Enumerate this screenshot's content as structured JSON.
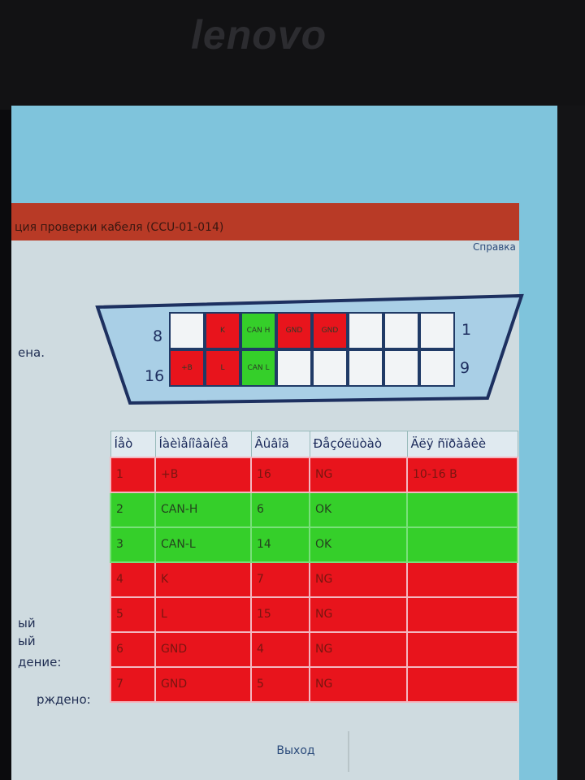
{
  "logo": "lenovo",
  "window": {
    "title": "ция проверки кабеля (CCU-01-014)",
    "help_link": "Справка",
    "exit_button": "Выход"
  },
  "left_labels": [
    "ена.",
    "ый",
    "ый",
    "дение:",
    "рждено:"
  ],
  "connector": {
    "pin_numbers": {
      "top_left": "8",
      "top_right": "1",
      "bottom_left": "16",
      "bottom_right": "9"
    },
    "top_row": [
      {
        "label": "",
        "status": "none"
      },
      {
        "label": "K",
        "status": "ng"
      },
      {
        "label": "CAN H",
        "status": "ok"
      },
      {
        "label": "GND",
        "status": "ng"
      },
      {
        "label": "GND",
        "status": "ng"
      },
      {
        "label": "",
        "status": "none"
      },
      {
        "label": "",
        "status": "none"
      },
      {
        "label": "",
        "status": "none"
      }
    ],
    "bottom_row": [
      {
        "label": "+B",
        "status": "ng"
      },
      {
        "label": "L",
        "status": "ng"
      },
      {
        "label": "CAN L",
        "status": "ok"
      },
      {
        "label": "",
        "status": "none"
      },
      {
        "label": "",
        "status": "none"
      },
      {
        "label": "",
        "status": "none"
      },
      {
        "label": "",
        "status": "none"
      },
      {
        "label": "",
        "status": "none"
      }
    ]
  },
  "colors": {
    "ok": "#35cf2a",
    "ng": "#e8141c",
    "none": "#f2f4f6"
  },
  "table": {
    "headers": [
      "Íåò",
      "Íàèìåíîâàíèå",
      "Âûâîä",
      "Ðåçóëüòàò",
      "Äëÿ ñïðàâêè"
    ],
    "rows": [
      {
        "status": "ng",
        "cells": [
          "1",
          "+B",
          "16",
          "NG",
          "10-16 В"
        ]
      },
      {
        "status": "ok",
        "cells": [
          "2",
          "CAN-H",
          "6",
          "OK",
          ""
        ]
      },
      {
        "status": "ok",
        "cells": [
          "3",
          "CAN-L",
          "14",
          "OK",
          ""
        ]
      },
      {
        "status": "ng",
        "cells": [
          "4",
          "K",
          "7",
          "NG",
          ""
        ]
      },
      {
        "status": "ng",
        "cells": [
          "5",
          "L",
          "15",
          "NG",
          ""
        ]
      },
      {
        "status": "ng",
        "cells": [
          "6",
          "GND",
          "4",
          "NG",
          ""
        ]
      },
      {
        "status": "ng",
        "cells": [
          "7",
          "GND",
          "5",
          "NG",
          ""
        ]
      }
    ]
  }
}
